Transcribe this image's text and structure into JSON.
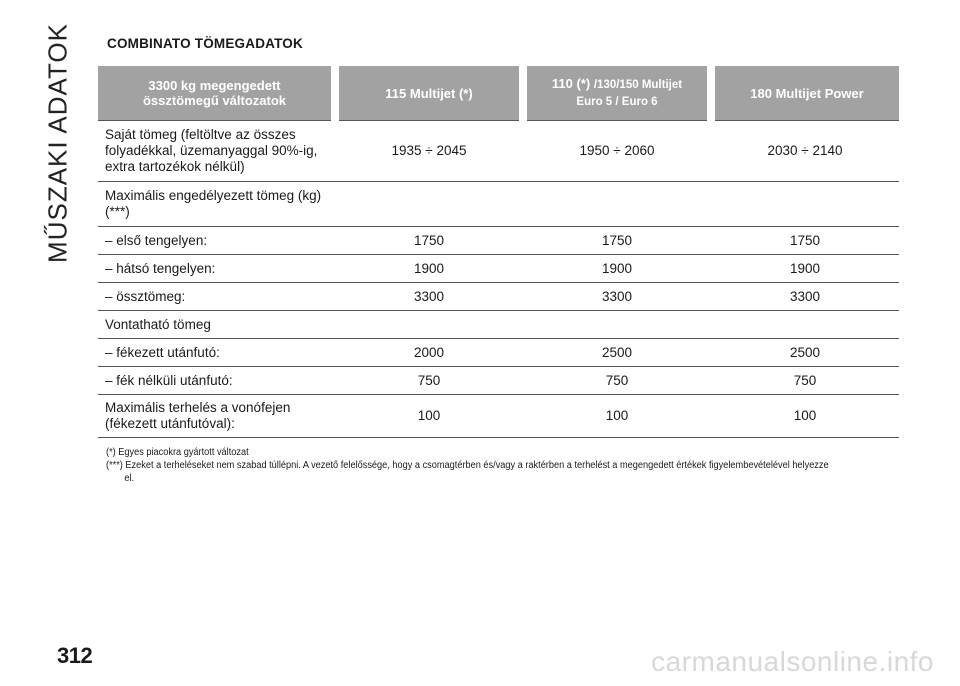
{
  "side_title": "MŰSZAKI ADATOK",
  "section_title": "COMBINATO TÖMEGADATOK",
  "table": {
    "headers": {
      "col0_line1": "3300 kg megengedett",
      "col0_line2": "össztömegű változatok",
      "col1": "115 Multijet (*)",
      "col2_part1": "110 (*)",
      "col2_part2": "/130/150 Multijet",
      "col2_line2": "Euro 5 / Euro 6",
      "col3": "180 Multijet Power"
    },
    "rows": [
      {
        "label": "Saját tömeg (feltöltve az összes folyadékkal, üzemanyaggal 90%-ig, extra tartozékok nélkül)",
        "v1": "1935 ÷ 2045",
        "v2": "1950 ÷ 2060",
        "v3": "2030 ÷ 2140"
      },
      {
        "label": "Maximális engedélyezett tömeg (kg) (***)",
        "v1": "",
        "v2": "",
        "v3": ""
      },
      {
        "label": "– első tengelyen:",
        "v1": "1750",
        "v2": "1750",
        "v3": "1750"
      },
      {
        "label": "– hátsó tengelyen:",
        "v1": "1900",
        "v2": "1900",
        "v3": "1900"
      },
      {
        "label": "– össztömeg:",
        "v1": "3300",
        "v2": "3300",
        "v3": "3300"
      },
      {
        "label": "Vontatható tömeg",
        "v1": "",
        "v2": "",
        "v3": ""
      },
      {
        "label": "– fékezett utánfutó:",
        "v1": "2000",
        "v2": "2500",
        "v3": "2500"
      },
      {
        "label": "– fék nélküli utánfutó:",
        "v1": "750",
        "v2": "750",
        "v3": "750"
      },
      {
        "label": "Maximális terhelés a vonófejen (fékezett utánfutóval):",
        "v1": "100",
        "v2": "100",
        "v3": "100"
      }
    ]
  },
  "notes": [
    "(*) Egyes piacokra gyártott változat",
    "(***) Ezeket a terheléseket nem szabad túllépni. A vezető felelőssége, hogy a csomagtérben és/vagy a raktérben a terhelést a megengedett értékek figyelembevételével helyezze el."
  ],
  "page_number": "312",
  "watermark": "carmanualsonline.info"
}
